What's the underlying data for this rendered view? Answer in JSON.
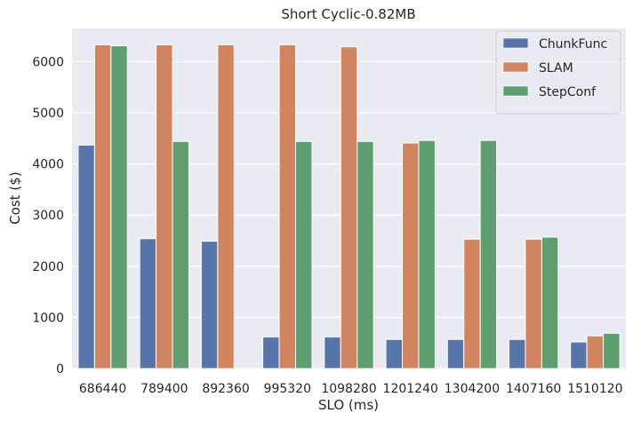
{
  "chart_data": {
    "type": "bar",
    "title": "Short Cyclic-0.82MB",
    "xlabel": "SLO (ms)",
    "ylabel": "Cost ($)",
    "ylim": [
      0,
      6650
    ],
    "yticks": [
      0,
      1000,
      2000,
      3000,
      4000,
      5000,
      6000
    ],
    "grid": true,
    "legend_position": "top-right",
    "categories": [
      "686440",
      "789400",
      "892360",
      "995320",
      "1098280",
      "1201240",
      "1304200",
      "1407160",
      "1510120"
    ],
    "series": [
      {
        "name": "ChunkFunc",
        "color": "#5875a9",
        "values": [
          4370,
          2540,
          2490,
          620,
          620,
          570,
          570,
          570,
          520
        ]
      },
      {
        "name": "SLAM",
        "color": "#d0845f",
        "values": [
          6330,
          6330,
          6330,
          6330,
          6290,
          4410,
          2530,
          2530,
          640
        ]
      },
      {
        "name": "StepConf",
        "color": "#5e9e6f",
        "values": [
          6310,
          4440,
          0,
          4440,
          4440,
          4460,
          4460,
          2570,
          690
        ]
      }
    ]
  }
}
